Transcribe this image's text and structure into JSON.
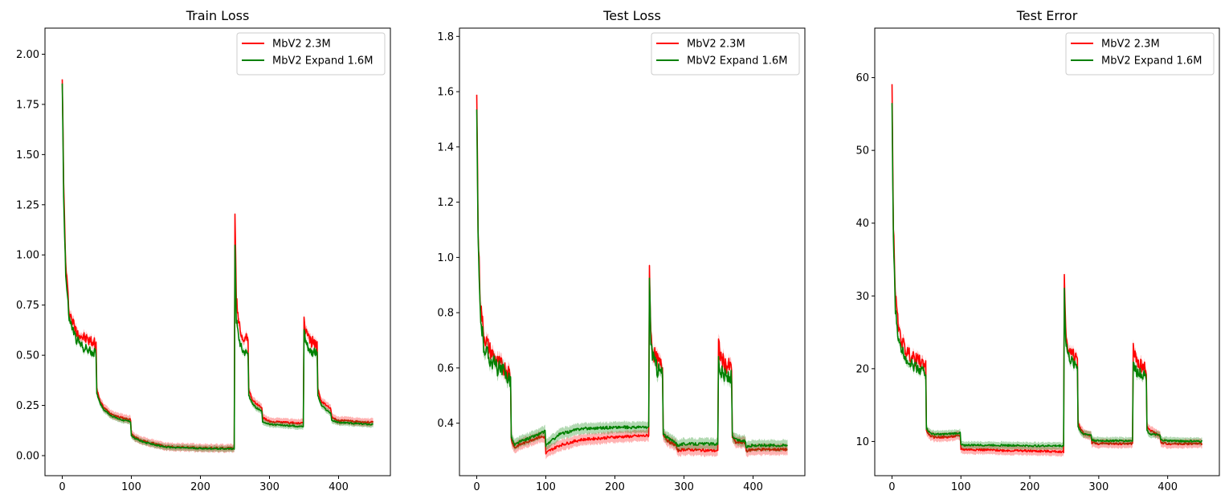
{
  "colors": {
    "mbv2": "#ff0000",
    "expand": "#008000",
    "axis": "#000000"
  },
  "chart_data": [
    {
      "type": "line",
      "title": "Train Loss",
      "xlim": [
        -25,
        475
      ],
      "ylim": [
        -0.1,
        2.13
      ],
      "xticks": [
        0,
        100,
        200,
        300,
        400
      ],
      "yticks": [
        "0.00",
        "0.25",
        "0.50",
        "0.75",
        "1.00",
        "1.25",
        "1.50",
        "1.75",
        "2.00"
      ],
      "legend": "top-right",
      "series": [
        {
          "name": "MbV2 2.3M",
          "color": "#ff0000",
          "band": 0.02,
          "x": [
            0,
            2,
            5,
            10,
            20,
            30,
            40,
            49,
            50,
            55,
            60,
            70,
            80,
            90,
            99,
            100,
            105,
            120,
            150,
            200,
            249,
            250,
            252,
            255,
            260,
            269,
            270,
            275,
            280,
            289,
            290,
            300,
            349,
            350,
            352,
            355,
            360,
            369,
            370,
            375,
            385,
            389,
            390,
            400,
            450
          ],
          "y": [
            1.9,
            1.35,
            0.95,
            0.72,
            0.62,
            0.59,
            0.57,
            0.56,
            0.33,
            0.27,
            0.24,
            0.21,
            0.195,
            0.185,
            0.18,
            0.11,
            0.09,
            0.07,
            0.045,
            0.038,
            0.036,
            1.2,
            0.78,
            0.67,
            0.6,
            0.57,
            0.33,
            0.28,
            0.26,
            0.24,
            0.19,
            0.17,
            0.16,
            0.69,
            0.63,
            0.6,
            0.57,
            0.56,
            0.33,
            0.27,
            0.245,
            0.23,
            0.19,
            0.175,
            0.165
          ]
        },
        {
          "name": "MbV2 Expand 1.6M",
          "color": "#008000",
          "band": 0.015,
          "x": [
            0,
            2,
            5,
            10,
            20,
            30,
            40,
            49,
            50,
            55,
            60,
            70,
            80,
            90,
            99,
            100,
            105,
            120,
            150,
            200,
            249,
            250,
            252,
            255,
            260,
            269,
            270,
            275,
            280,
            289,
            290,
            300,
            349,
            350,
            352,
            355,
            360,
            369,
            370,
            375,
            385,
            389,
            390,
            400,
            450
          ],
          "y": [
            1.86,
            1.3,
            0.9,
            0.68,
            0.58,
            0.54,
            0.52,
            0.51,
            0.31,
            0.26,
            0.23,
            0.2,
            0.185,
            0.175,
            0.17,
            0.1,
            0.085,
            0.065,
            0.042,
            0.036,
            0.034,
            1.05,
            0.68,
            0.6,
            0.53,
            0.51,
            0.3,
            0.26,
            0.24,
            0.22,
            0.17,
            0.155,
            0.145,
            0.63,
            0.58,
            0.55,
            0.52,
            0.51,
            0.3,
            0.25,
            0.22,
            0.21,
            0.175,
            0.165,
            0.155
          ]
        }
      ]
    },
    {
      "type": "line",
      "title": "Test Loss",
      "xlim": [
        -25,
        475
      ],
      "ylim": [
        0.21,
        1.83
      ],
      "xticks": [
        0,
        100,
        200,
        300,
        400
      ],
      "yticks": [
        "0.4",
        "0.6",
        "0.8",
        "1.0",
        "1.2",
        "1.4",
        "1.6",
        "1.8"
      ],
      "legend": "top-right",
      "series": [
        {
          "name": "MbV2 2.3M",
          "color": "#ff0000",
          "band": 0.02,
          "x": [
            0,
            2,
            5,
            10,
            20,
            30,
            40,
            49,
            50,
            55,
            60,
            70,
            80,
            90,
            99,
            100,
            105,
            120,
            150,
            200,
            249,
            250,
            252,
            255,
            260,
            269,
            270,
            275,
            280,
            289,
            290,
            300,
            349,
            350,
            352,
            355,
            360,
            369,
            370,
            375,
            385,
            389,
            390,
            400,
            450
          ],
          "y": [
            1.6,
            1.1,
            0.85,
            0.72,
            0.66,
            0.62,
            0.6,
            0.58,
            0.34,
            0.31,
            0.32,
            0.33,
            0.34,
            0.35,
            0.35,
            0.29,
            0.3,
            0.32,
            0.34,
            0.35,
            0.355,
            0.97,
            0.72,
            0.66,
            0.63,
            0.6,
            0.36,
            0.34,
            0.33,
            0.32,
            0.3,
            0.305,
            0.3,
            0.7,
            0.65,
            0.63,
            0.61,
            0.6,
            0.35,
            0.33,
            0.33,
            0.33,
            0.3,
            0.305,
            0.305
          ]
        },
        {
          "name": "MbV2 Expand 1.6M",
          "color": "#008000",
          "band": 0.02,
          "x": [
            0,
            2,
            5,
            10,
            20,
            30,
            40,
            49,
            50,
            55,
            60,
            70,
            80,
            90,
            99,
            100,
            105,
            120,
            150,
            200,
            249,
            250,
            252,
            255,
            260,
            269,
            270,
            275,
            280,
            289,
            290,
            300,
            349,
            350,
            352,
            355,
            360,
            369,
            370,
            375,
            385,
            389,
            390,
            400,
            450
          ],
          "y": [
            1.53,
            1.05,
            0.8,
            0.68,
            0.63,
            0.6,
            0.58,
            0.56,
            0.35,
            0.32,
            0.33,
            0.34,
            0.35,
            0.36,
            0.37,
            0.32,
            0.33,
            0.36,
            0.38,
            0.385,
            0.385,
            0.92,
            0.7,
            0.64,
            0.6,
            0.58,
            0.36,
            0.35,
            0.34,
            0.33,
            0.32,
            0.325,
            0.325,
            0.64,
            0.6,
            0.58,
            0.57,
            0.56,
            0.35,
            0.34,
            0.335,
            0.335,
            0.315,
            0.32,
            0.32
          ]
        }
      ]
    },
    {
      "type": "line",
      "title": "Test Error",
      "xlim": [
        -25,
        475
      ],
      "ylim": [
        5.3,
        66.8
      ],
      "xticks": [
        0,
        100,
        200,
        300,
        400
      ],
      "yticks": [
        "10",
        "20",
        "30",
        "40",
        "50",
        "60"
      ],
      "legend": "top-right",
      "series": [
        {
          "name": "MbV2 2.3M",
          "color": "#ff0000",
          "band": 0.6,
          "x": [
            0,
            2,
            5,
            10,
            20,
            30,
            40,
            49,
            50,
            55,
            60,
            70,
            80,
            90,
            99,
            100,
            105,
            120,
            150,
            200,
            249,
            250,
            252,
            255,
            260,
            269,
            270,
            275,
            280,
            289,
            290,
            300,
            349,
            350,
            352,
            355,
            360,
            369,
            370,
            375,
            385,
            389,
            390,
            400,
            450
          ],
          "y": [
            59,
            40,
            30,
            25,
            22.5,
            21.5,
            21,
            20.5,
            11.5,
            10.8,
            10.6,
            10.6,
            10.6,
            10.7,
            10.8,
            9.0,
            8.9,
            8.9,
            8.8,
            8.7,
            8.6,
            33,
            25,
            23,
            22,
            21.5,
            12.5,
            11.5,
            11,
            10.8,
            9.8,
            9.7,
            9.7,
            23.5,
            22,
            21,
            20.5,
            20,
            12,
            11.5,
            11,
            10.8,
            9.8,
            9.7,
            9.7
          ]
        },
        {
          "name": "MbV2 Expand 1.6M",
          "color": "#008000",
          "band": 0.5,
          "x": [
            0,
            2,
            5,
            10,
            20,
            30,
            40,
            49,
            50,
            55,
            60,
            70,
            80,
            90,
            99,
            100,
            105,
            120,
            150,
            200,
            249,
            250,
            252,
            255,
            260,
            269,
            270,
            275,
            280,
            289,
            290,
            300,
            349,
            350,
            352,
            355,
            360,
            369,
            370,
            375,
            385,
            389,
            390,
            400,
            450
          ],
          "y": [
            56,
            38,
            28,
            23.5,
            21.5,
            20.5,
            20,
            19.5,
            11.8,
            11.2,
            11.0,
            11.0,
            11.0,
            11.1,
            11.2,
            9.5,
            9.5,
            9.5,
            9.5,
            9.4,
            9.4,
            31,
            24,
            22,
            21,
            20.5,
            12,
            11.2,
            11,
            10.9,
            10.2,
            10.1,
            10.1,
            21,
            20,
            19.5,
            19.5,
            19,
            11.5,
            11,
            10.9,
            10.8,
            10.2,
            10.1,
            10.0
          ]
        }
      ]
    }
  ]
}
